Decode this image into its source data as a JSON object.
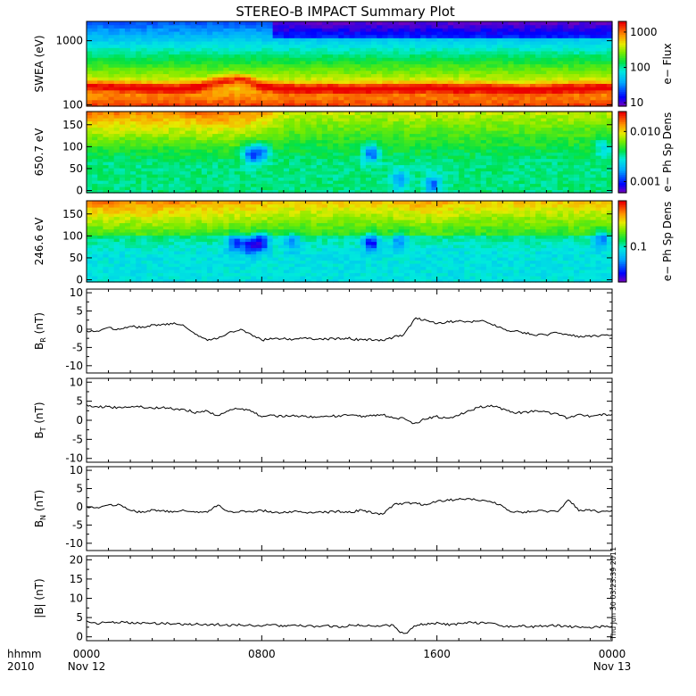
{
  "title": "STEREO-B IMPACT Summary Plot",
  "footer": {
    "hhmm_label": "hhmm",
    "year_label": "2010",
    "stamp": "Thu Jun 30 03:23:39 2011"
  },
  "chart_data": [
    {
      "type": "heatmap",
      "ylabel": "SWEA (eV)",
      "y_scale": "log",
      "ylim": [
        95,
        2000
      ],
      "y_ticks": [
        {
          "value": 100,
          "label": "100"
        },
        {
          "value": 1000,
          "label": "1000"
        }
      ],
      "colorbar": {
        "label": "e− Flux",
        "scale": "log",
        "range": [
          8,
          2000
        ],
        "ticks": [
          {
            "value": 10,
            "label": "10"
          },
          {
            "value": 100,
            "label": "100"
          },
          {
            "value": 1000,
            "label": "1000"
          }
        ]
      },
      "x_hours": [
        0,
        1,
        2,
        3,
        4,
        5,
        6,
        7,
        8,
        9,
        10,
        11,
        12,
        13,
        14,
        15,
        16,
        17,
        18,
        19,
        20,
        21,
        22,
        23,
        24
      ],
      "band_center_eV": [
        200,
        195,
        190,
        185,
        180,
        190,
        230,
        260,
        200,
        185,
        180,
        185,
        180,
        180,
        185,
        185,
        190,
        180,
        185,
        180,
        175,
        180,
        185,
        185,
        190
      ],
      "low_flux_onset_hour": 8.5
    },
    {
      "type": "heatmap",
      "ylabel": "650.7 eV",
      "ylim": [
        -5,
        180
      ],
      "y_ticks": [
        {
          "value": 0,
          "label": "0"
        },
        {
          "value": 50,
          "label": "50"
        },
        {
          "value": 100,
          "label": "100"
        },
        {
          "value": 150,
          "label": "150"
        }
      ],
      "colorbar": {
        "label": "e− Ph Sp Dens",
        "scale": "log",
        "range": [
          0.0006,
          0.025
        ],
        "ticks": [
          {
            "value": 0.001,
            "label": "0.001"
          },
          {
            "value": 0.01,
            "label": "0.010"
          }
        ]
      },
      "x_hours": [
        0,
        1,
        2,
        3,
        4,
        5,
        6,
        7,
        8,
        9,
        10,
        11,
        12,
        13,
        14,
        15,
        16,
        17,
        18,
        19,
        20,
        21,
        22,
        23,
        24
      ],
      "strahl_strength": [
        0.9,
        0.9,
        0.85,
        0.9,
        0.85,
        0.9,
        0.95,
        0.9,
        0.8,
        0.55,
        0.5,
        0.5,
        0.5,
        0.5,
        0.5,
        0.55,
        0.5,
        0.55,
        0.5,
        0.5,
        0.5,
        0.5,
        0.5,
        0.5,
        0.5
      ],
      "dropouts": [
        {
          "hour": 7.5,
          "pitch": 85,
          "depth": 1.0
        },
        {
          "hour": 8.0,
          "pitch": 88,
          "depth": 0.8
        },
        {
          "hour": 13.0,
          "pitch": 85,
          "depth": 0.9
        },
        {
          "hour": 14.3,
          "pitch": 25,
          "depth": 0.7
        },
        {
          "hour": 15.8,
          "pitch": 15,
          "depth": 0.8
        },
        {
          "hour": 23.6,
          "pitch": 100,
          "depth": 0.5
        }
      ]
    },
    {
      "type": "heatmap",
      "ylabel": "246.6 eV",
      "ylim": [
        -5,
        180
      ],
      "y_ticks": [
        {
          "value": 0,
          "label": "0"
        },
        {
          "value": 50,
          "label": "50"
        },
        {
          "value": 100,
          "label": "100"
        },
        {
          "value": 150,
          "label": "150"
        }
      ],
      "colorbar": {
        "label": "e− Ph Sp Dens",
        "scale": "log",
        "range": [
          0.02,
          0.8
        ],
        "ticks": [
          {
            "value": 0.1,
            "label": "0.1"
          }
        ]
      },
      "x_hours": [
        0,
        1,
        2,
        3,
        4,
        5,
        6,
        7,
        8,
        9,
        10,
        11,
        12,
        13,
        14,
        15,
        16,
        17,
        18,
        19,
        20,
        21,
        22,
        23,
        24
      ],
      "strahl_strength": [
        0.85,
        0.9,
        0.85,
        0.9,
        0.85,
        0.8,
        0.8,
        0.75,
        0.75,
        0.7,
        0.7,
        0.7,
        0.7,
        0.7,
        0.7,
        0.8,
        0.8,
        0.7,
        0.7,
        0.7,
        0.7,
        0.7,
        0.7,
        0.7,
        0.7
      ],
      "dropouts": [
        {
          "hour": 6.8,
          "pitch": 85,
          "depth": 0.9
        },
        {
          "hour": 7.5,
          "pitch": 80,
          "depth": 1.0
        },
        {
          "hour": 8.0,
          "pitch": 88,
          "depth": 1.0
        },
        {
          "hour": 9.4,
          "pitch": 90,
          "depth": 0.6
        },
        {
          "hour": 13.0,
          "pitch": 85,
          "depth": 1.0
        },
        {
          "hour": 14.3,
          "pitch": 90,
          "depth": 0.6
        },
        {
          "hour": 23.5,
          "pitch": 95,
          "depth": 0.7
        }
      ]
    },
    {
      "type": "line",
      "ylabel": "B",
      "ylabel_sub": "R",
      "ylabel_unit": " (nT)",
      "ylim": [
        -12,
        11
      ],
      "y_ticks": [
        -10,
        -5,
        0,
        5,
        10
      ],
      "x": [
        0,
        0.5,
        1,
        1.5,
        2,
        2.5,
        3,
        3.5,
        4,
        4.5,
        5,
        5.5,
        6,
        6.5,
        7,
        7.5,
        8,
        8.5,
        9,
        9.5,
        10,
        10.5,
        11,
        11.5,
        12,
        12.5,
        13,
        13.5,
        14,
        14.5,
        15,
        15.5,
        16,
        16.5,
        17,
        17.5,
        18,
        18.5,
        19,
        19.5,
        20,
        20.5,
        21,
        21.5,
        22,
        22.5,
        23,
        23.5,
        24
      ],
      "y": [
        -0.5,
        -0.8,
        0.5,
        -0.2,
        0.8,
        0.5,
        1.0,
        1.2,
        1.5,
        0.8,
        -1.5,
        -3.0,
        -2.5,
        -1.0,
        0.0,
        -1.5,
        -3.0,
        -2.5,
        -2.5,
        -2.8,
        -2.5,
        -2.8,
        -2.7,
        -2.5,
        -2.5,
        -3.0,
        -2.8,
        -3.0,
        -2.2,
        -1.5,
        3.0,
        2.5,
        1.5,
        2.0,
        2.2,
        1.8,
        2.5,
        1.5,
        0.0,
        -0.5,
        -1.0,
        -1.5,
        -1.5,
        -1.0,
        -1.5,
        -2.0,
        -2.0,
        -1.8,
        -1.5
      ]
    },
    {
      "type": "line",
      "ylabel": "B",
      "ylabel_sub": "T",
      "ylabel_unit": " (nT)",
      "ylim": [
        -11,
        11
      ],
      "y_ticks": [
        -10,
        -5,
        0,
        5,
        10
      ],
      "x": [
        0,
        0.5,
        1,
        1.5,
        2,
        2.5,
        3,
        3.5,
        4,
        4.5,
        5,
        5.5,
        6,
        6.5,
        7,
        7.5,
        8,
        8.5,
        9,
        9.5,
        10,
        10.5,
        11,
        11.5,
        12,
        12.5,
        13,
        13.5,
        14,
        14.5,
        15,
        15.5,
        16,
        16.5,
        17,
        17.5,
        18,
        18.5,
        19,
        19.5,
        20,
        20.5,
        21,
        21.5,
        22,
        22.5,
        23,
        23.5,
        24
      ],
      "y": [
        4.0,
        3.5,
        3.5,
        3.3,
        3.5,
        3.5,
        3.2,
        3.3,
        3.0,
        2.8,
        2.0,
        2.5,
        1.0,
        2.8,
        3.0,
        2.5,
        1.0,
        1.2,
        1.0,
        1.2,
        1.0,
        0.8,
        1.2,
        1.0,
        1.5,
        1.0,
        1.2,
        1.5,
        0.5,
        0.5,
        -1.0,
        0.5,
        1.0,
        0.5,
        1.5,
        2.5,
        3.5,
        3.8,
        3.0,
        2.0,
        2.0,
        2.5,
        2.0,
        1.5,
        0.5,
        1.5,
        1.0,
        1.5,
        1.5
      ]
    },
    {
      "type": "line",
      "ylabel": "B",
      "ylabel_sub": "N",
      "ylabel_unit": " (nT)",
      "ylim": [
        -12,
        11
      ],
      "y_ticks": [
        -10,
        -5,
        0,
        5,
        10
      ],
      "x": [
        0,
        0.5,
        1,
        1.5,
        2,
        2.5,
        3,
        3.5,
        4,
        4.5,
        5,
        5.5,
        6,
        6.5,
        7,
        7.5,
        8,
        8.5,
        9,
        9.5,
        10,
        10.5,
        11,
        11.5,
        12,
        12.5,
        13,
        13.5,
        14,
        14.5,
        15,
        15.5,
        16,
        16.5,
        17,
        17.5,
        18,
        18.5,
        19,
        19.5,
        20,
        20.5,
        21,
        21.5,
        22,
        22.5,
        23,
        23.5,
        24
      ],
      "y": [
        0.0,
        -0.5,
        0.5,
        0.5,
        -1.0,
        -1.5,
        -1.0,
        -1.2,
        -1.5,
        -1.0,
        -1.5,
        -1.5,
        0.5,
        -1.5,
        -1.2,
        -1.5,
        -1.0,
        -1.5,
        -1.5,
        -1.2,
        -1.8,
        -1.5,
        -1.5,
        -1.2,
        -1.5,
        -1.0,
        -1.5,
        -2.0,
        0.5,
        1.0,
        1.0,
        0.5,
        1.5,
        1.8,
        2.0,
        2.0,
        1.8,
        1.5,
        0.0,
        -1.5,
        -1.5,
        -1.0,
        -1.2,
        -1.5,
        2.0,
        -1.0,
        -1.0,
        -1.5,
        -1.0
      ]
    },
    {
      "type": "line",
      "ylabel": "|B|",
      "ylabel_sub": "",
      "ylabel_unit": " (nT)",
      "ylim": [
        -1,
        21
      ],
      "y_ticks": [
        0,
        5,
        10,
        15,
        20
      ],
      "x": [
        0,
        0.5,
        1,
        1.5,
        2,
        2.5,
        3,
        3.5,
        4,
        4.5,
        5,
        5.5,
        6,
        6.5,
        7,
        7.5,
        8,
        8.5,
        9,
        9.5,
        10,
        10.5,
        11,
        11.5,
        12,
        12.5,
        13,
        13.5,
        14,
        14.5,
        15,
        15.5,
        16,
        16.5,
        17,
        17.5,
        18,
        18.5,
        19,
        19.5,
        20,
        20.5,
        21,
        21.5,
        22,
        22.5,
        23,
        23.5,
        24
      ],
      "y": [
        4.0,
        3.5,
        3.8,
        3.8,
        3.6,
        3.5,
        3.5,
        3.5,
        3.4,
        3.2,
        3.3,
        3.2,
        3.2,
        3.0,
        3.1,
        3.0,
        2.9,
        3.0,
        2.8,
        2.9,
        2.8,
        2.7,
        2.8,
        2.6,
        2.9,
        3.0,
        2.8,
        3.0,
        3.0,
        0.5,
        3.0,
        3.3,
        3.5,
        3.2,
        3.4,
        3.7,
        3.6,
        3.5,
        2.8,
        2.7,
        2.8,
        2.6,
        2.9,
        2.9,
        2.7,
        2.5,
        2.5,
        2.6,
        2.5
      ]
    }
  ],
  "x_axis": {
    "ticks": [
      {
        "hour": 0,
        "line1": "0000",
        "line2": "Nov 12"
      },
      {
        "hour": 8,
        "line1": "0800",
        "line2": ""
      },
      {
        "hour": 16,
        "line1": "1600",
        "line2": ""
      },
      {
        "hour": 24,
        "line1": "0000",
        "line2": "Nov 13"
      }
    ]
  }
}
